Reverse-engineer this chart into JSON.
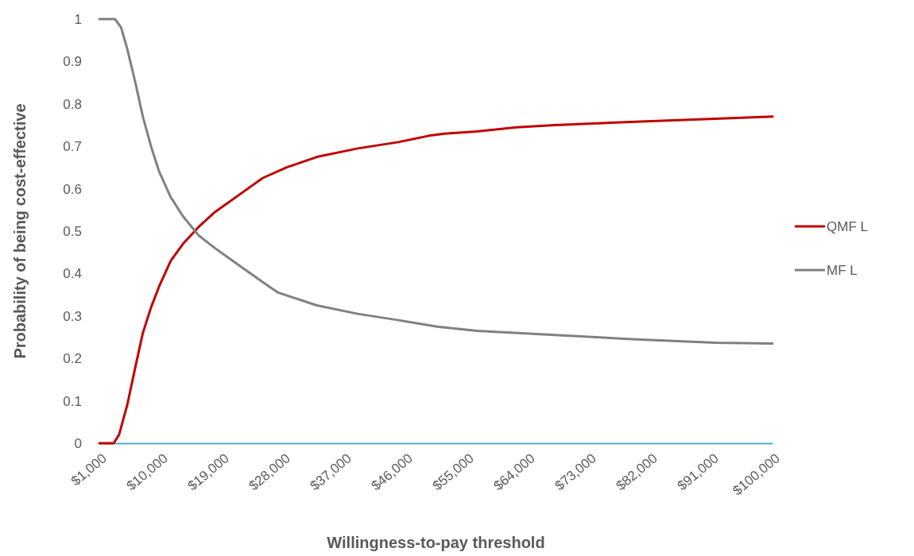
{
  "chart_data": {
    "type": "line",
    "xlabel": "Willingness-to-pay threshold",
    "ylabel": "Probability of being cost-effective",
    "xlim": [
      1000,
      100000
    ],
    "xticks": [
      {
        "value": 1000,
        "label": "$1,000"
      },
      {
        "value": 10000,
        "label": "$10,000"
      },
      {
        "value": 19000,
        "label": "$19,000"
      },
      {
        "value": 28000,
        "label": "$28,000"
      },
      {
        "value": 37000,
        "label": "$37,000"
      },
      {
        "value": 46000,
        "label": "$46,000"
      },
      {
        "value": 55000,
        "label": "$55,000"
      },
      {
        "value": 64000,
        "label": "$64,000"
      },
      {
        "value": 73000,
        "label": "$73,000"
      },
      {
        "value": 82000,
        "label": "$82,000"
      },
      {
        "value": 91000,
        "label": "$91,000"
      },
      {
        "value": 100000,
        "label": "$100,000"
      }
    ],
    "ylim": [
      0,
      1
    ],
    "yticks": [
      0,
      0.1,
      0.2,
      0.3,
      0.4,
      0.5,
      0.6,
      0.7,
      0.8,
      0.9,
      1
    ],
    "grid": false,
    "legend": "right",
    "marker": "none",
    "line_style": "solid",
    "series": [
      {
        "name": "QMF L",
        "color": "#c00000",
        "x": [
          1000,
          3100,
          3900,
          5100,
          6300,
          7400,
          8600,
          9800,
          11500,
          13300,
          15600,
          18000,
          21500,
          25000,
          28500,
          33000,
          39000,
          45000,
          49500,
          51800,
          56500,
          62400,
          68000,
          79900,
          91600,
          100000
        ],
        "values": [
          0,
          0,
          0.02,
          0.09,
          0.18,
          0.26,
          0.32,
          0.37,
          0.43,
          0.47,
          0.51,
          0.545,
          0.585,
          0.625,
          0.65,
          0.675,
          0.695,
          0.71,
          0.725,
          0.73,
          0.735,
          0.745,
          0.75,
          0.758,
          0.765,
          0.77
        ]
      },
      {
        "name": "MF L",
        "color": "#808080",
        "x": [
          1000,
          3300,
          4200,
          5100,
          6300,
          7400,
          8600,
          9800,
          11500,
          13300,
          15600,
          18000,
          21500,
          25000,
          27300,
          33000,
          39000,
          45000,
          50700,
          56500,
          68000,
          79900,
          91600,
          100000
        ],
        "values": [
          1,
          1,
          0.98,
          0.93,
          0.85,
          0.77,
          0.7,
          0.64,
          0.58,
          0.535,
          0.49,
          0.46,
          0.42,
          0.38,
          0.355,
          0.325,
          0.305,
          0.29,
          0.275,
          0.265,
          0.255,
          0.245,
          0.237,
          0.235
        ]
      }
    ]
  }
}
